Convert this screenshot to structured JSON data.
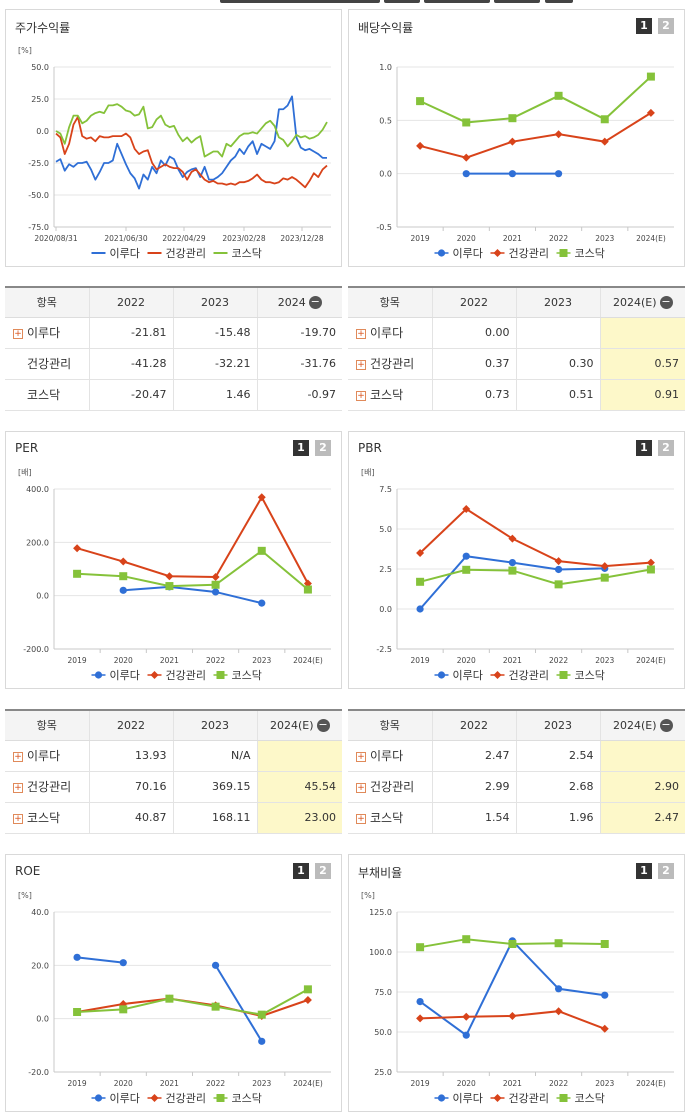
{
  "series_names": [
    "이루다",
    "건강관리",
    "코스닥"
  ],
  "colors": {
    "s0": "#2f6fd6",
    "s1": "#d8431a",
    "s2": "#85c23a"
  },
  "pager": {
    "p1": "1",
    "p2": "2"
  },
  "panels": {
    "stock": {
      "title": "주가수익률"
    },
    "dividend": {
      "title": "배당수익률"
    },
    "per": {
      "title": "PER"
    },
    "pbr": {
      "title": "PBR"
    },
    "roe": {
      "title": "ROE"
    },
    "debt": {
      "title": "부채비율"
    }
  },
  "tables": {
    "stock": {
      "headers": [
        "항목",
        "2022",
        "2023",
        "2024"
      ],
      "rows": [
        {
          "name": "이루다",
          "plus": true,
          "v": [
            "-21.81",
            "-15.48",
            "-19.70"
          ]
        },
        {
          "name": "건강관리",
          "plus": false,
          "v": [
            "-41.28",
            "-32.21",
            "-31.76"
          ]
        },
        {
          "name": "코스닥",
          "plus": false,
          "v": [
            "-20.47",
            "1.46",
            "-0.97"
          ]
        }
      ]
    },
    "dividend": {
      "headers": [
        "항목",
        "2022",
        "2023",
        "2024(E)"
      ],
      "rows": [
        {
          "name": "이루다",
          "plus": true,
          "v": [
            "0.00",
            "",
            ""
          ]
        },
        {
          "name": "건강관리",
          "plus": true,
          "v": [
            "0.37",
            "0.30",
            "0.57"
          ]
        },
        {
          "name": "코스닥",
          "plus": true,
          "v": [
            "0.73",
            "0.51",
            "0.91"
          ]
        }
      ]
    },
    "per": {
      "headers": [
        "항목",
        "2022",
        "2023",
        "2024(E)"
      ],
      "rows": [
        {
          "name": "이루다",
          "plus": true,
          "v": [
            "13.93",
            "N/A",
            ""
          ]
        },
        {
          "name": "건강관리",
          "plus": true,
          "v": [
            "70.16",
            "369.15",
            "45.54"
          ]
        },
        {
          "name": "코스닥",
          "plus": true,
          "v": [
            "40.87",
            "168.11",
            "23.00"
          ]
        }
      ]
    },
    "pbr": {
      "headers": [
        "항목",
        "2022",
        "2023",
        "2024(E)"
      ],
      "rows": [
        {
          "name": "이루다",
          "plus": true,
          "v": [
            "2.47",
            "2.54",
            ""
          ]
        },
        {
          "name": "건강관리",
          "plus": true,
          "v": [
            "2.99",
            "2.68",
            "2.90"
          ]
        },
        {
          "name": "코스닥",
          "plus": true,
          "v": [
            "1.54",
            "1.96",
            "2.47"
          ]
        }
      ]
    }
  },
  "chart_data": [
    {
      "id": "stock",
      "type": "line",
      "unit": "[%]",
      "ylim": [
        -75,
        50
      ],
      "yticks": [
        "50.0",
        "25.0",
        "0.0",
        "-25.0",
        "-50.0",
        "-75.0"
      ],
      "xticks": [
        "2020/08/31",
        "2021/06/30",
        "2022/04/29",
        "2023/02/28",
        "2023/12/28"
      ],
      "series": [
        {
          "name": "이루다",
          "values": [
            -24,
            -22,
            -31,
            -26,
            -28,
            -25,
            -25,
            -24,
            -30,
            -38,
            -32,
            -25,
            -25,
            -23,
            -10,
            -18,
            -26,
            -33,
            -37,
            -45,
            -34,
            -38,
            -28,
            -33,
            -23,
            -27,
            -20,
            -22,
            -30,
            -36,
            -32,
            -30,
            -29,
            -36,
            -28,
            -38,
            -38,
            -36,
            -33,
            -28,
            -23,
            -20,
            -14,
            -18,
            -12,
            -8,
            -18,
            -10,
            -12,
            -14,
            -8,
            17,
            17,
            20,
            27,
            -5,
            -13,
            -15,
            -14,
            -16,
            -18,
            -21,
            -21
          ]
        },
        {
          "name": "건강관리",
          "values": [
            -2,
            -5,
            -18,
            -10,
            5,
            11,
            -4,
            -6,
            -5,
            -8,
            -4,
            -5,
            -5,
            -4,
            -4,
            -4,
            -2,
            -5,
            -14,
            -18,
            -16,
            -15,
            -25,
            -30,
            -28,
            -26,
            -28,
            -29,
            -29,
            -32,
            -38,
            -32,
            -30,
            -34,
            -38,
            -40,
            -39,
            -41,
            -41,
            -42,
            -41,
            -42,
            -40,
            -40,
            -39,
            -37,
            -34,
            -38,
            -40,
            -40,
            -41,
            -40,
            -37,
            -38,
            -36,
            -38,
            -41,
            -44,
            -39,
            -33,
            -36,
            -30,
            -27
          ]
        },
        {
          "name": "코스닥",
          "values": [
            0,
            -2,
            -10,
            3,
            12,
            12,
            6,
            8,
            12,
            14,
            15,
            14,
            20,
            20,
            21,
            19,
            16,
            15,
            12,
            13,
            19,
            2,
            3,
            9,
            12,
            5,
            3,
            4,
            -3,
            -8,
            -5,
            -9,
            -6,
            -4,
            -20,
            -18,
            -16,
            -16,
            -20,
            -10,
            -12,
            -8,
            -4,
            -2,
            -2,
            -1,
            -2,
            2,
            6,
            8,
            4,
            -5,
            -7,
            -12,
            -8,
            -3,
            -5,
            -4,
            -6,
            -5,
            -3,
            1,
            7
          ]
        }
      ]
    },
    {
      "id": "dividend",
      "type": "line",
      "unit": "",
      "ylim": [
        -0.5,
        1.0
      ],
      "yticks": [
        "1.0",
        "0.5",
        "0.0",
        "-0.5"
      ],
      "categories": [
        "2019",
        "2020",
        "2021",
        "2022",
        "2023",
        "2024(E)"
      ],
      "series": [
        {
          "name": "이루다",
          "values": [
            null,
            0.0,
            0.0,
            0.0,
            null,
            null
          ]
        },
        {
          "name": "건강관리",
          "values": [
            0.26,
            0.15,
            0.3,
            0.37,
            0.3,
            0.57
          ]
        },
        {
          "name": "코스닥",
          "values": [
            0.68,
            0.48,
            0.52,
            0.73,
            0.51,
            0.91
          ]
        }
      ]
    },
    {
      "id": "per",
      "type": "line",
      "unit": "[배]",
      "ylim": [
        -200,
        400
      ],
      "yticks": [
        "400.0",
        "200.0",
        "0.0",
        "-200.0"
      ],
      "categories": [
        "2019",
        "2020",
        "2021",
        "2022",
        "2023",
        "2024(E)"
      ],
      "series": [
        {
          "name": "이루다",
          "values": [
            null,
            20,
            33,
            13.93,
            -28,
            null
          ]
        },
        {
          "name": "건강관리",
          "values": [
            178,
            128,
            73,
            70.16,
            369.15,
            45.54
          ]
        },
        {
          "name": "코스닥",
          "values": [
            82,
            73,
            36,
            40.87,
            168.11,
            23.0
          ]
        }
      ]
    },
    {
      "id": "pbr",
      "type": "line",
      "unit": "[배]",
      "ylim": [
        -2.5,
        7.5
      ],
      "yticks": [
        "7.5",
        "5.0",
        "2.5",
        "0.0",
        "-2.5"
      ],
      "categories": [
        "2019",
        "2020",
        "2021",
        "2022",
        "2023",
        "2024(E)"
      ],
      "series": [
        {
          "name": "이루다",
          "values": [
            0.0,
            3.3,
            2.9,
            2.47,
            2.54,
            null
          ]
        },
        {
          "name": "건강관리",
          "values": [
            3.5,
            6.25,
            4.4,
            2.99,
            2.68,
            2.9
          ]
        },
        {
          "name": "코스닥",
          "values": [
            1.7,
            2.45,
            2.4,
            1.54,
            1.96,
            2.47
          ]
        }
      ]
    },
    {
      "id": "roe",
      "type": "line",
      "unit": "[%]",
      "ylim": [
        -20,
        40
      ],
      "yticks": [
        "40.0",
        "20.0",
        "0.0",
        "-20.0"
      ],
      "categories": [
        "2019",
        "2020",
        "2021",
        "2022",
        "2023",
        "2024(E)"
      ],
      "series": [
        {
          "name": "이루다",
          "values": [
            23,
            21,
            null,
            20,
            -8.5,
            null
          ]
        },
        {
          "name": "건강관리",
          "values": [
            2.5,
            5.5,
            7.5,
            5.0,
            1.0,
            7.0
          ]
        },
        {
          "name": "코스닥",
          "values": [
            2.5,
            3.5,
            7.5,
            4.5,
            1.5,
            11
          ]
        }
      ]
    },
    {
      "id": "debt",
      "type": "line",
      "unit": "[%]",
      "ylim": [
        25,
        125
      ],
      "yticks": [
        "125.0",
        "100.0",
        "75.0",
        "50.0",
        "25.0"
      ],
      "categories": [
        "2019",
        "2020",
        "2021",
        "2022",
        "2023",
        "2024(E)"
      ],
      "series": [
        {
          "name": "이루다",
          "values": [
            69,
            48,
            107,
            77,
            73,
            null
          ]
        },
        {
          "name": "건강관리",
          "values": [
            58.5,
            59.5,
            60,
            63,
            52,
            null
          ]
        },
        {
          "name": "코스닥",
          "values": [
            103,
            108,
            105,
            105.5,
            105,
            null
          ]
        }
      ]
    }
  ]
}
